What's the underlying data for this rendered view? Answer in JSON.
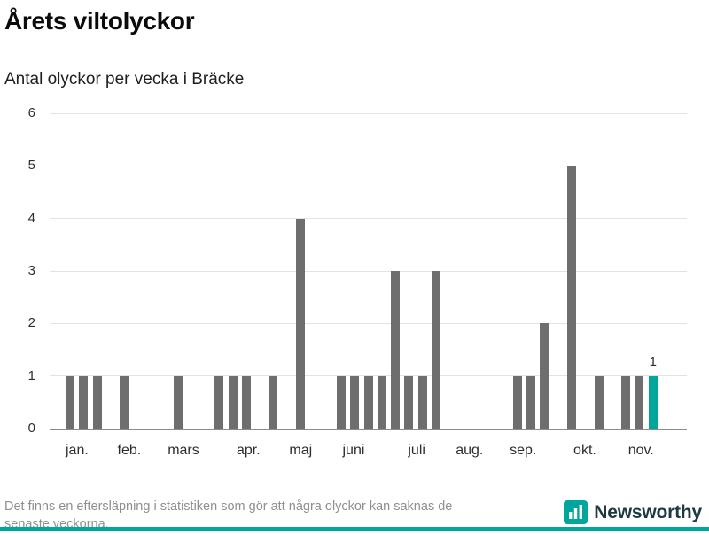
{
  "header": {
    "title": "Årets viltolyckor",
    "subtitle": "Antal olyckor per vecka i Bräcke"
  },
  "chart_data": {
    "type": "bar",
    "title": "Årets viltolyckor",
    "subtitle": "Antal olyckor per vecka i Bräcke",
    "ylabel": "Antal olyckor per vecka",
    "xlabel": "",
    "ylim": [
      0,
      6
    ],
    "yticks": [
      0,
      1,
      2,
      3,
      4,
      5,
      6
    ],
    "grid": true,
    "x_total_slots": 47,
    "x_unit": "vecka",
    "values": [
      0,
      1,
      1,
      1,
      0,
      1,
      0,
      0,
      0,
      1,
      0,
      0,
      1,
      1,
      1,
      0,
      1,
      0,
      4,
      0,
      0,
      1,
      1,
      1,
      1,
      3,
      1,
      1,
      3,
      0,
      0,
      0,
      0,
      0,
      1,
      1,
      2,
      0,
      5,
      0,
      1,
      0,
      1,
      1,
      1
    ],
    "highlight_index": 44,
    "highlight_label": "1",
    "months": [
      {
        "label": "jan.",
        "pos": 0.043
      },
      {
        "label": "feb.",
        "pos": 0.125
      },
      {
        "label": "mars",
        "pos": 0.21
      },
      {
        "label": "apr.",
        "pos": 0.312
      },
      {
        "label": "maj",
        "pos": 0.394
      },
      {
        "label": "juni",
        "pos": 0.477
      },
      {
        "label": "juli",
        "pos": 0.576
      },
      {
        "label": "aug.",
        "pos": 0.659
      },
      {
        "label": "sep.",
        "pos": 0.743
      },
      {
        "label": "okt.",
        "pos": 0.84
      },
      {
        "label": "nov.",
        "pos": 0.928
      }
    ],
    "colors": {
      "bar": "#6e6e6e",
      "highlight": "#00a59b",
      "grid": "#e3e3e3",
      "baseline": "#8c8c8c"
    }
  },
  "footer": {
    "note_lines": [
      "Det finns en eftersläpning i statistiken som gör att några olyckor kan saknas de",
      "senaste veckorna."
    ],
    "brand": "Newsworthy"
  },
  "colors": {
    "accent": "#00a59b"
  }
}
